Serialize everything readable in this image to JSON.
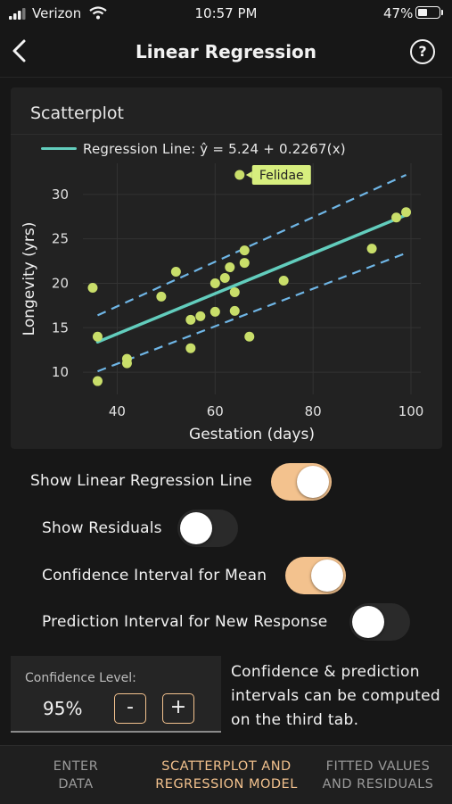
{
  "status_bar": {
    "carrier": "Verizon",
    "time": "10:57 PM",
    "battery_percent": "47%",
    "battery_level": 0.47
  },
  "nav": {
    "title": "Linear Regression",
    "back_icon": "chevron-left-icon",
    "help_icon": "question-circle-icon",
    "help_glyph": "?"
  },
  "card": {
    "title": "Scatterplot",
    "legend_label": "Regression Line: ŷ = 5.24 + 0.2267(x)"
  },
  "chart_data": {
    "type": "scatter",
    "xlabel": "Gestation (days)",
    "ylabel": "Longevity (yrs)",
    "xlim": [
      33,
      102
    ],
    "ylim": [
      7.5,
      33.5
    ],
    "x_ticks": [
      40,
      60,
      80,
      100
    ],
    "y_ticks": [
      10,
      15,
      20,
      25,
      30
    ],
    "grid": true,
    "points": [
      {
        "x": 35,
        "y": 19.5
      },
      {
        "x": 36,
        "y": 9
      },
      {
        "x": 36,
        "y": 14
      },
      {
        "x": 42,
        "y": 11.5
      },
      {
        "x": 42,
        "y": 11
      },
      {
        "x": 49,
        "y": 18.5
      },
      {
        "x": 52,
        "y": 21.3
      },
      {
        "x": 55,
        "y": 12.7
      },
      {
        "x": 55,
        "y": 15.9
      },
      {
        "x": 57,
        "y": 16.3
      },
      {
        "x": 60,
        "y": 16.8
      },
      {
        "x": 60,
        "y": 20
      },
      {
        "x": 62,
        "y": 20.6
      },
      {
        "x": 63,
        "y": 21.8
      },
      {
        "x": 64,
        "y": 16.9
      },
      {
        "x": 64,
        "y": 19
      },
      {
        "x": 65,
        "y": 32.2
      },
      {
        "x": 66,
        "y": 22.3
      },
      {
        "x": 66,
        "y": 23.7
      },
      {
        "x": 67,
        "y": 14
      },
      {
        "x": 74,
        "y": 20.3
      },
      {
        "x": 92,
        "y": 23.9
      },
      {
        "x": 97,
        "y": 27.4
      },
      {
        "x": 99,
        "y": 28
      }
    ],
    "annotation": {
      "label": "Felidae",
      "x": 65,
      "y": 32.2
    },
    "regression": {
      "intercept": 5.24,
      "slope": 0.2267
    },
    "confidence_band": {
      "upper": [
        {
          "x": 36,
          "y": 16.4
        },
        {
          "x": 99,
          "y": 32.2
        }
      ],
      "lower": [
        {
          "x": 36,
          "y": 10.1
        },
        {
          "x": 99,
          "y": 23.4
        }
      ]
    },
    "colors": {
      "points": "#c9de6a",
      "regression_line": "#62cdbd",
      "band": "#6fb6e6",
      "annotation_bg": "#d7ee7e"
    }
  },
  "controls": {
    "show_regression_line": {
      "label": "Show Linear Regression Line",
      "on": true
    },
    "show_residuals": {
      "label": "Show Residuals",
      "on": false
    },
    "confidence_interval_mean": {
      "label": "Confidence Interval for Mean",
      "on": true
    },
    "prediction_interval": {
      "label": "Prediction Interval for New Response",
      "on": false
    }
  },
  "confidence": {
    "label": "Confidence Level:",
    "value": "95%",
    "minus": "-",
    "plus": "+"
  },
  "note": "Confidence & prediction intervals can be computed on the third tab.",
  "tabs": [
    {
      "label": "ENTER DATA",
      "active": false
    },
    {
      "label": "SCATTERPLOT AND REGRESSION MODEL",
      "active": true
    },
    {
      "label": "FITTED VALUES AND RESIDUALS",
      "active": false
    }
  ],
  "theme": {
    "accent": "#f3c28e",
    "background": "#171717",
    "card": "#222222"
  }
}
